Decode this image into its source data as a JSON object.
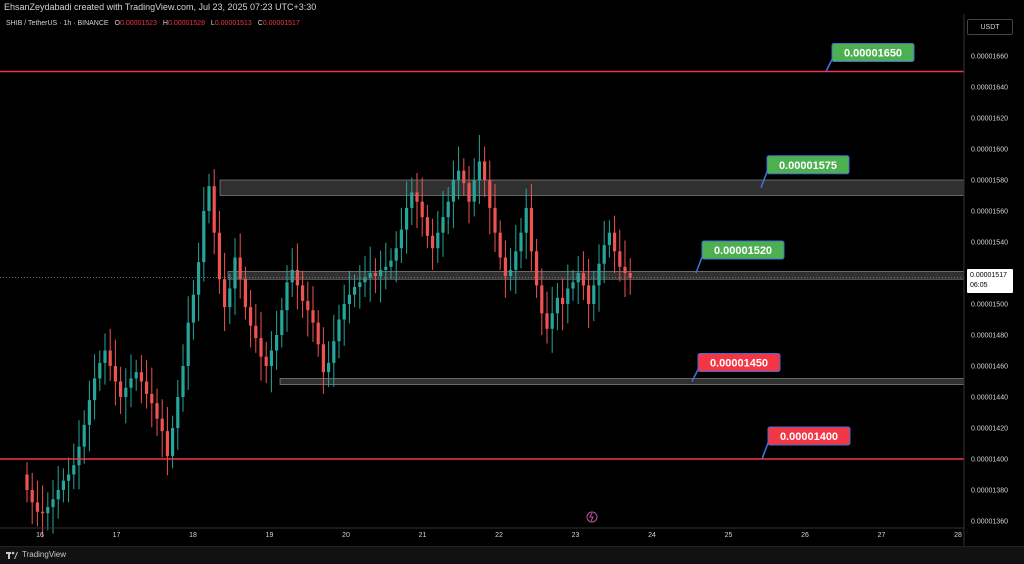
{
  "header": {
    "author_line": "EhsanZeydabadi created with TradingView.com, Jul 23, 2025 07:23 UTC+3:30"
  },
  "legend": {
    "symbol": "SHIB / TetherUS · 1h · BINANCE",
    "open_label": "O",
    "open": "0.00001523",
    "high_label": "H",
    "high": "0.00001528",
    "low_label": "L",
    "low": "0.00001513",
    "close_label": "C",
    "close": "0.00001517"
  },
  "price_scale": {
    "currency": "USDT",
    "current_price": "0.00001517",
    "countdown": "06:05"
  },
  "footer": {
    "brand": "TradingView"
  },
  "colors": {
    "bull": "#26a69a",
    "bear": "#ef5350",
    "red_line": "#f23645",
    "green_label": "#4caf50",
    "red_label": "#f23645"
  },
  "chart_data": {
    "type": "candlestick",
    "x_tick_labels": [
      "16",
      "17",
      "18",
      "19",
      "20",
      "21",
      "22",
      "23",
      "24",
      "25",
      "26",
      "27",
      "28"
    ],
    "y_tick_labels": [
      "0.00001660",
      "0.00001640",
      "0.00001620",
      "0.00001600",
      "0.00001580",
      "0.00001560",
      "0.00001540",
      "0.00001520",
      "0.00001500",
      "0.00001480",
      "0.00001460",
      "0.00001440",
      "0.00001420",
      "0.00001400",
      "0.00001380",
      "0.00001360"
    ],
    "ylim": [
      1.356e-05,
      1.671e-05
    ],
    "grid": false,
    "levels": [
      {
        "label": "0.00001650",
        "price": 1.65e-05,
        "kind": "line",
        "color": "red",
        "label_color": "green"
      },
      {
        "label": "0.00001575",
        "price": 1.575e-05,
        "kind": "zone",
        "zone": [
          1.57e-05,
          1.58e-05
        ],
        "label_color": "green"
      },
      {
        "label": "0.00001520",
        "price": 1.52e-05,
        "kind": "zone",
        "zone": [
          1.516e-05,
          1.521e-05
        ],
        "label_color": "green"
      },
      {
        "label": "0.00001450",
        "price": 1.45e-05,
        "kind": "zone",
        "zone": [
          1.448e-05,
          1.452e-05
        ],
        "label_color": "red"
      },
      {
        "label": "0.00001400",
        "price": 1.4e-05,
        "kind": "line",
        "color": "red",
        "label_color": "red"
      }
    ],
    "closes": [
      1.38e-05,
      1.372e-05,
      1.366e-05,
      1.365e-05,
      1.369e-05,
      1.374e-05,
      1.38e-05,
      1.386e-05,
      1.39e-05,
      1.396e-05,
      1.408e-05,
      1.422e-05,
      1.438e-05,
      1.452e-05,
      1.462e-05,
      1.47e-05,
      1.46e-05,
      1.45e-05,
      1.44e-05,
      1.446e-05,
      1.452e-05,
      1.456e-05,
      1.45e-05,
      1.442e-05,
      1.436e-05,
      1.426e-05,
      1.418e-05,
      1.402e-05,
      1.42e-05,
      1.44e-05,
      1.46e-05,
      1.488e-05,
      1.506e-05,
      1.527e-05,
      1.56e-05,
      1.576e-05,
      1.546e-05,
      1.516e-05,
      1.498e-05,
      1.51e-05,
      1.53e-05,
      1.516e-05,
      1.498e-05,
      1.486e-05,
      1.478e-05,
      1.466e-05,
      1.46e-05,
      1.47e-05,
      1.48e-05,
      1.496e-05,
      1.514e-05,
      1.522e-05,
      1.512e-05,
      1.502e-05,
      1.496e-05,
      1.488e-05,
      1.474e-05,
      1.456e-05,
      1.462e-05,
      1.476e-05,
      1.49e-05,
      1.5e-05,
      1.506e-05,
      1.511e-05,
      1.514e-05,
      1.517e-05,
      1.52e-05,
      1.518e-05,
      1.522e-05,
      1.524e-05,
      1.528e-05,
      1.536e-05,
      1.548e-05,
      1.562e-05,
      1.572e-05,
      1.566e-05,
      1.556e-05,
      1.544e-05,
      1.536e-05,
      1.546e-05,
      1.556e-05,
      1.566e-05,
      1.58e-05,
      1.586e-05,
      1.578e-05,
      1.566e-05,
      1.58e-05,
      1.592e-05,
      1.58e-05,
      1.562e-05,
      1.546e-05,
      1.53e-05,
      1.518e-05,
      1.522e-05,
      1.534e-05,
      1.546e-05,
      1.562e-05,
      1.534e-05,
      1.512e-05,
      1.494e-05,
      1.484e-05,
      1.494e-05,
      1.504e-05,
      1.5e-05,
      1.51e-05,
      1.514e-05,
      1.52e-05,
      1.512e-05,
      1.5e-05,
      1.512e-05,
      1.526e-05,
      1.538e-05,
      1.546e-05,
      1.534e-05,
      1.524e-05,
      1.52e-05,
      1.517e-05
    ]
  }
}
